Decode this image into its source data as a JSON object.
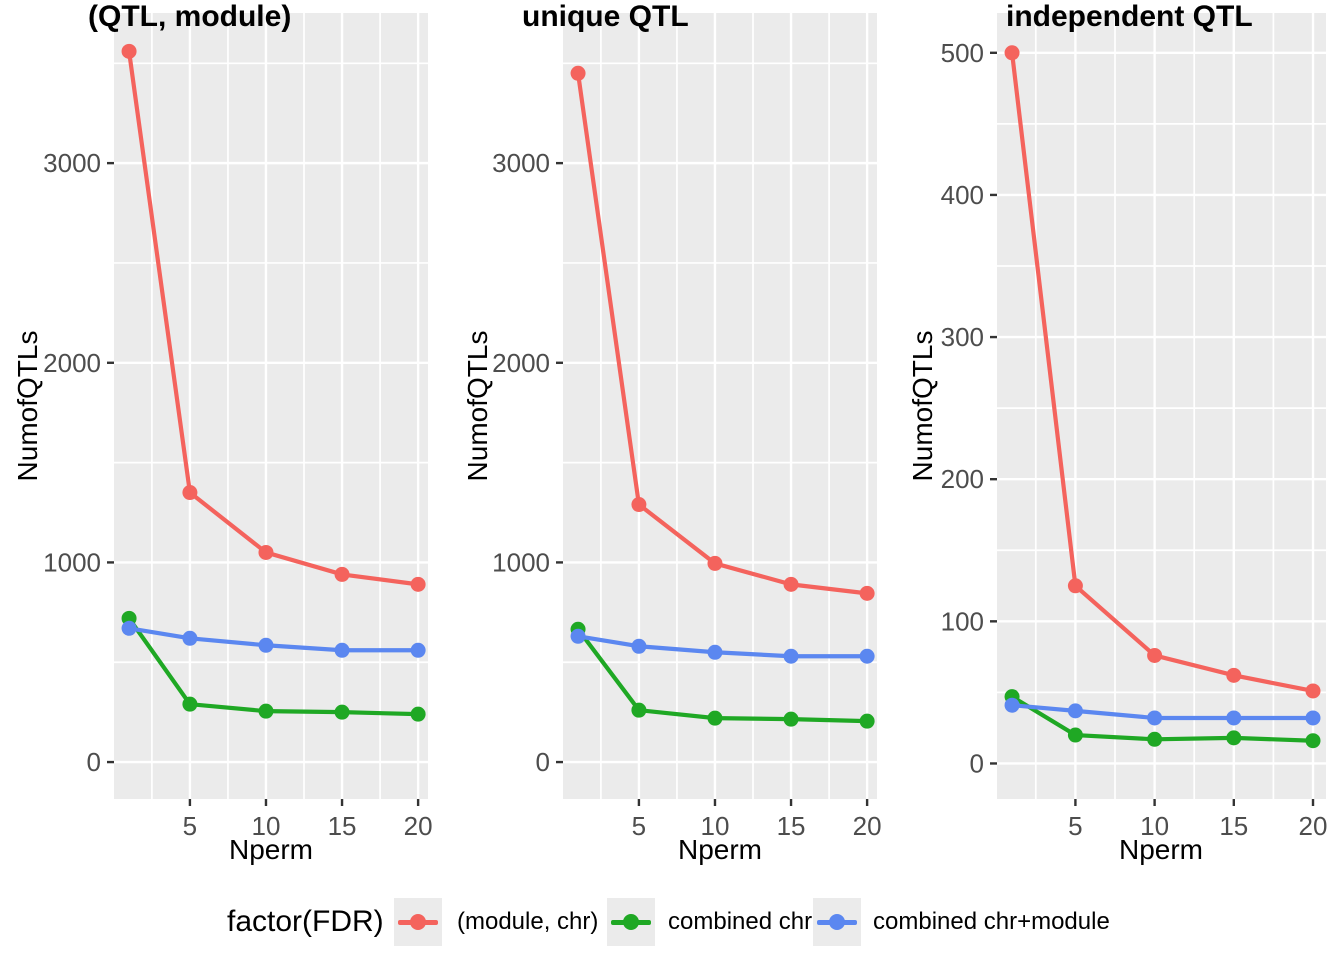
{
  "colors": {
    "panel_background": "#EBEBEB",
    "gridline": "#FFFFFF",
    "tick_label": "#4D4D4D",
    "tick_mark": "#333333",
    "series_red": "#F4635D",
    "series_green": "#1FA824",
    "series_blue": "#5B87F0"
  },
  "legend": {
    "title": "factor(FDR)",
    "entries": [
      {
        "label": "(module, chr)",
        "color": "#F4635D"
      },
      {
        "label": "combined chr",
        "color": "#1FA824"
      },
      {
        "label": "combined chr+module",
        "color": "#5B87F0"
      }
    ]
  },
  "chart_data": [
    {
      "type": "line",
      "title": "(QTL, module)",
      "xlabel": "Nperm",
      "ylabel": "NumofQTLs",
      "x": [
        1,
        5,
        10,
        15,
        20
      ],
      "xticks": [
        5,
        10,
        15,
        20
      ],
      "yticks": [
        0,
        1000,
        2000,
        3000
      ],
      "xlim": [
        0.01,
        20.65
      ],
      "ylim": [
        -185,
        3752
      ],
      "grid": true,
      "legend_position": "bottom",
      "series": [
        {
          "name": "(module, chr)",
          "color": "#F4635D",
          "values": [
            3560,
            1350,
            1050,
            940,
            890
          ]
        },
        {
          "name": "combined chr",
          "color": "#1FA824",
          "values": [
            720,
            290,
            255,
            250,
            240
          ]
        },
        {
          "name": "combined chr+module",
          "color": "#5B87F0",
          "values": [
            670,
            620,
            585,
            560,
            560
          ]
        }
      ]
    },
    {
      "type": "line",
      "title": "unique QTL",
      "xlabel": "Nperm",
      "ylabel": "NumofQTLs",
      "x": [
        1,
        5,
        10,
        15,
        20
      ],
      "xticks": [
        5,
        10,
        15,
        20
      ],
      "yticks": [
        0,
        1000,
        2000,
        3000
      ],
      "xlim": [
        0.01,
        20.65
      ],
      "ylim": [
        -185,
        3752
      ],
      "grid": true,
      "legend_position": "bottom",
      "series": [
        {
          "name": "(module, chr)",
          "color": "#F4635D",
          "values": [
            3450,
            1290,
            995,
            890,
            845
          ]
        },
        {
          "name": "combined chr",
          "color": "#1FA824",
          "values": [
            665,
            260,
            220,
            215,
            205
          ]
        },
        {
          "name": "combined chr+module",
          "color": "#5B87F0",
          "values": [
            630,
            580,
            550,
            530,
            530
          ]
        }
      ]
    },
    {
      "type": "line",
      "title": "independent QTL",
      "xlabel": "Nperm",
      "ylabel": "NumofQTLs",
      "x": [
        1,
        5,
        10,
        15,
        20
      ],
      "xticks": [
        5,
        10,
        15,
        20
      ],
      "yticks": [
        0,
        100,
        200,
        300,
        400,
        500
      ],
      "xlim": [
        0.05,
        20.82
      ],
      "ylim": [
        -25,
        528
      ],
      "grid": true,
      "legend_position": "bottom",
      "series": [
        {
          "name": "(module, chr)",
          "color": "#F4635D",
          "values": [
            500,
            125,
            76,
            62,
            51
          ]
        },
        {
          "name": "combined chr",
          "color": "#1FA824",
          "values": [
            47,
            20,
            17,
            18,
            16
          ]
        },
        {
          "name": "combined chr+module",
          "color": "#5B87F0",
          "values": [
            41,
            37,
            32,
            32,
            32
          ]
        }
      ]
    }
  ]
}
